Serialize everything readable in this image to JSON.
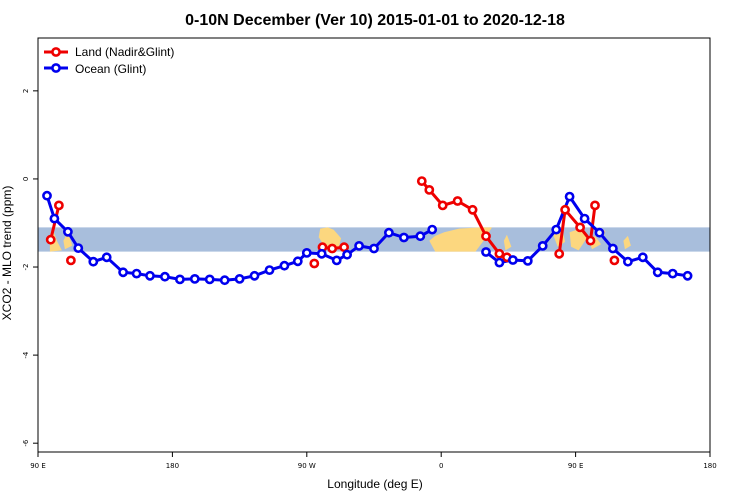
{
  "chart_data": {
    "type": "line",
    "title": "0-10N December (Ver 10)   2015-01-01 to 2020-12-18",
    "xlabel": "Longitude (deg E)",
    "ylabel": "XCO2 - MLO trend (ppm)",
    "xlim": [
      90,
      540
    ],
    "ylim": [
      -6.2,
      3.2
    ],
    "x_ticks": [
      {
        "value": 90,
        "label": "90 E"
      },
      {
        "value": 180,
        "label": "180"
      },
      {
        "value": 270,
        "label": "90 W"
      },
      {
        "value": 360,
        "label": "0"
      },
      {
        "value": 450,
        "label": "90 E"
      },
      {
        "value": 540,
        "label": "180"
      }
    ],
    "y_ticks": [
      {
        "value": 2,
        "label": "2"
      },
      {
        "value": 0,
        "label": "0"
      },
      {
        "value": -2,
        "label": "-2"
      },
      {
        "value": -4,
        "label": "-4"
      },
      {
        "value": -6,
        "label": "-6"
      }
    ],
    "map_band": {
      "y_top": -1.1,
      "y_bottom": -1.65,
      "ocean_color": "#a8bedc",
      "land_color": "#fcd77f"
    },
    "legend_position": "top-left",
    "series": [
      {
        "name": "Land (Nadir&Glint)",
        "color": "#ee0000",
        "segments": [
          [
            [
              98.5,
              -1.38
            ],
            [
              104,
              -0.6
            ]
          ],
          [
            [
              112,
              -1.85
            ]
          ],
          [
            [
              275,
              -1.92
            ]
          ],
          [
            [
              280.5,
              -1.55
            ],
            [
              287,
              -1.58
            ],
            [
              295,
              -1.55
            ]
          ],
          [
            [
              347,
              -0.05
            ],
            [
              352,
              -0.25
            ],
            [
              361,
              -0.6
            ],
            [
              371,
              -0.5
            ],
            [
              381,
              -0.7
            ],
            [
              390,
              -1.3
            ],
            [
              399,
              -1.7
            ],
            [
              404,
              -1.78
            ]
          ],
          [
            [
              439,
              -1.7
            ],
            [
              443,
              -0.7
            ],
            [
              453,
              -1.1
            ],
            [
              460,
              -1.4
            ],
            [
              463,
              -0.6
            ]
          ],
          [
            [
              476,
              -1.85
            ]
          ]
        ]
      },
      {
        "name": "Ocean (Glint)",
        "color": "#0000ee",
        "segments": [
          [
            [
              96,
              -0.38
            ],
            [
              101,
              -0.9
            ],
            [
              110,
              -1.2
            ],
            [
              117,
              -1.57
            ],
            [
              127,
              -1.88
            ],
            [
              136,
              -1.78
            ],
            [
              147,
              -2.12
            ],
            [
              156,
              -2.15
            ],
            [
              165,
              -2.2
            ],
            [
              175,
              -2.22
            ],
            [
              185,
              -2.28
            ],
            [
              195,
              -2.27
            ],
            [
              205,
              -2.28
            ],
            [
              215,
              -2.3
            ],
            [
              225,
              -2.27
            ],
            [
              235,
              -2.2
            ],
            [
              245,
              -2.07
            ],
            [
              255,
              -1.97
            ],
            [
              264,
              -1.87
            ],
            [
              270,
              -1.68
            ],
            [
              280,
              -1.7
            ],
            [
              290,
              -1.85
            ],
            [
              297,
              -1.72
            ],
            [
              305,
              -1.52
            ],
            [
              315,
              -1.58
            ],
            [
              325,
              -1.22
            ],
            [
              335,
              -1.33
            ],
            [
              346,
              -1.3
            ],
            [
              354,
              -1.15
            ]
          ],
          [
            [
              390,
              -1.66
            ],
            [
              399,
              -1.9
            ],
            [
              408,
              -1.84
            ],
            [
              418,
              -1.86
            ],
            [
              428,
              -1.52
            ],
            [
              437,
              -1.15
            ],
            [
              446,
              -0.4
            ],
            [
              456,
              -0.9
            ],
            [
              466,
              -1.22
            ],
            [
              475,
              -1.58
            ],
            [
              485,
              -1.88
            ],
            [
              495,
              -1.78
            ],
            [
              505,
              -2.12
            ],
            [
              515,
              -2.15
            ],
            [
              525,
              -2.2
            ]
          ]
        ]
      }
    ]
  }
}
